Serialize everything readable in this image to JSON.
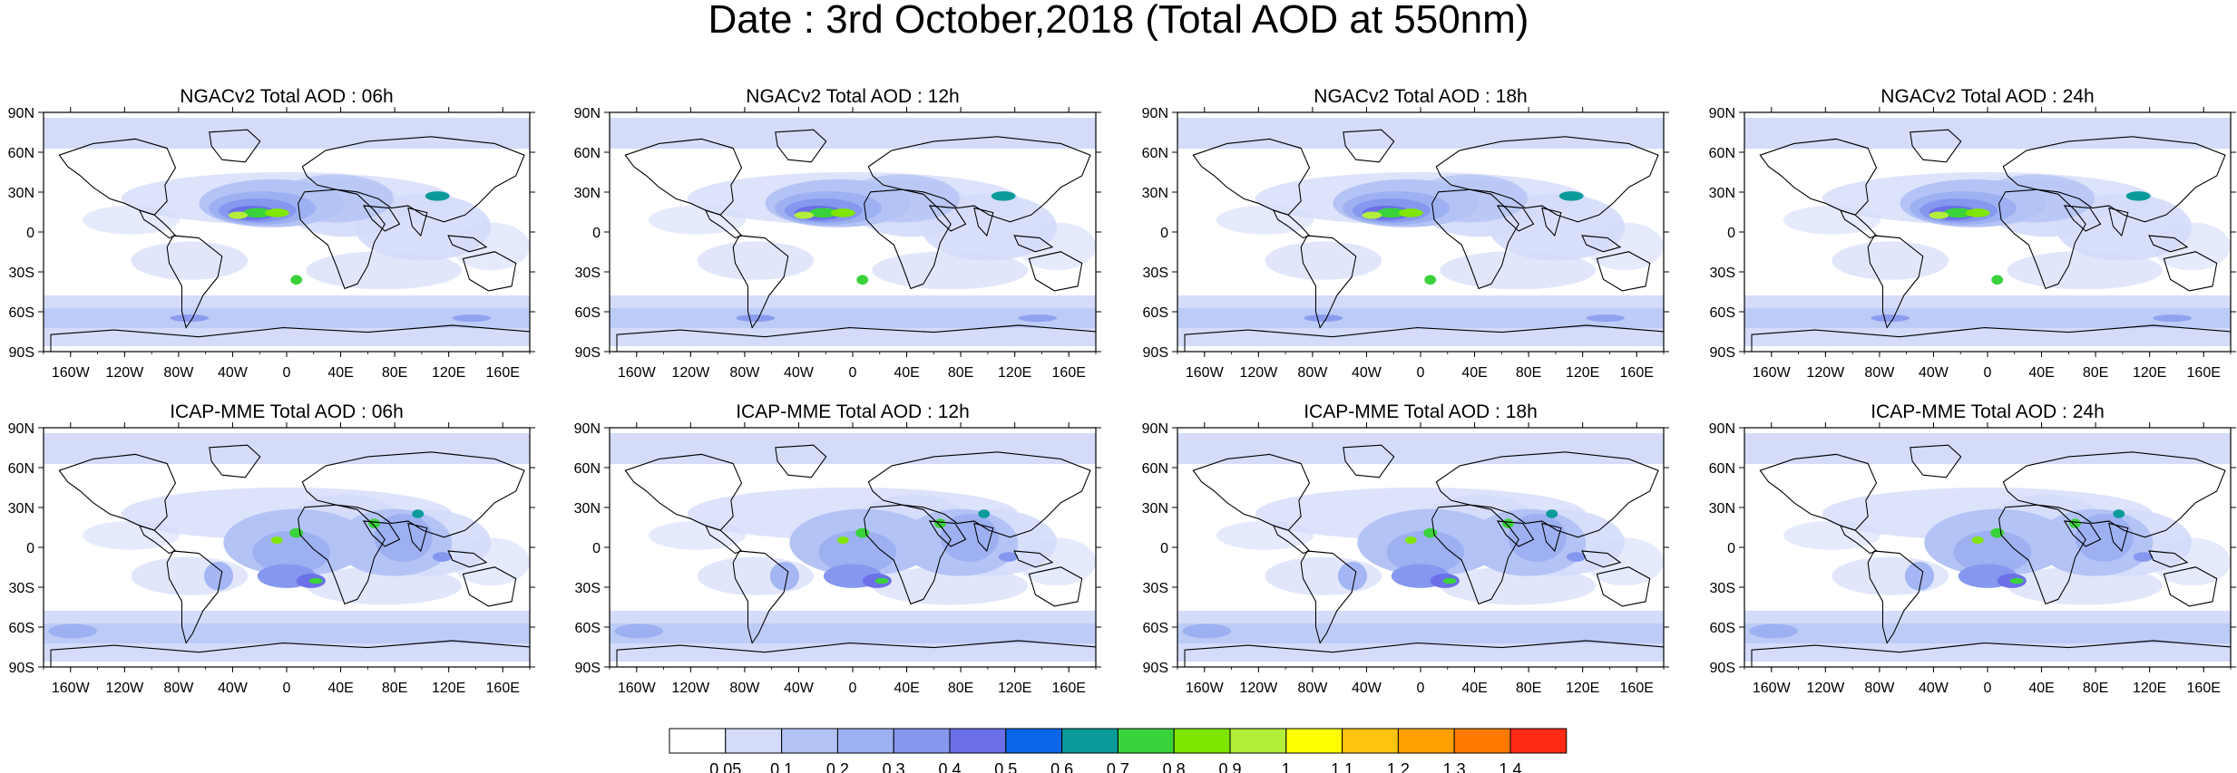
{
  "title": "Date : 3rd October,2018 (Total AOD at 550nm)",
  "lat_ticks": [
    "90N",
    "60N",
    "30N",
    "0",
    "30S",
    "60S",
    "90S"
  ],
  "lon_ticks": [
    "160W",
    "120W",
    "80W",
    "40W",
    "0",
    "40E",
    "80E",
    "120E",
    "160E"
  ],
  "panels": [
    {
      "title": "NGACv2 Total AOD : 06h",
      "model": "NGACv2",
      "hours": 6
    },
    {
      "title": "NGACv2 Total AOD : 12h",
      "model": "NGACv2",
      "hours": 12
    },
    {
      "title": "NGACv2 Total AOD : 18h",
      "model": "NGACv2",
      "hours": 18
    },
    {
      "title": "NGACv2 Total AOD : 24h",
      "model": "NGACv2",
      "hours": 24
    },
    {
      "title": "ICAP-MME Total AOD : 06h",
      "model": "ICAP-MME",
      "hours": 6
    },
    {
      "title": "ICAP-MME Total AOD : 12h",
      "model": "ICAP-MME",
      "hours": 12
    },
    {
      "title": "ICAP-MME Total AOD : 18h",
      "model": "ICAP-MME",
      "hours": 18
    },
    {
      "title": "ICAP-MME Total AOD : 24h",
      "model": "ICAP-MME",
      "hours": 24
    }
  ],
  "colorbar": {
    "labels": [
      "0.05",
      "0.1",
      "0.2",
      "0.3",
      "0.4",
      "0.5",
      "0.6",
      "0.7",
      "0.8",
      "0.9",
      "1",
      "1.1",
      "1.2",
      "1.3",
      "1.4"
    ],
    "colors": [
      "#ffffff",
      "#d4dcfa",
      "#b4c3f5",
      "#9db0f2",
      "#8597ee",
      "#6b70e8",
      "#0a66e6",
      "#0a9a9a",
      "#3ad23a",
      "#7fe600",
      "#b3ee3a",
      "#ffff00",
      "#ffc40d",
      "#ffa000",
      "#ff7a00",
      "#ff2a14"
    ]
  }
}
